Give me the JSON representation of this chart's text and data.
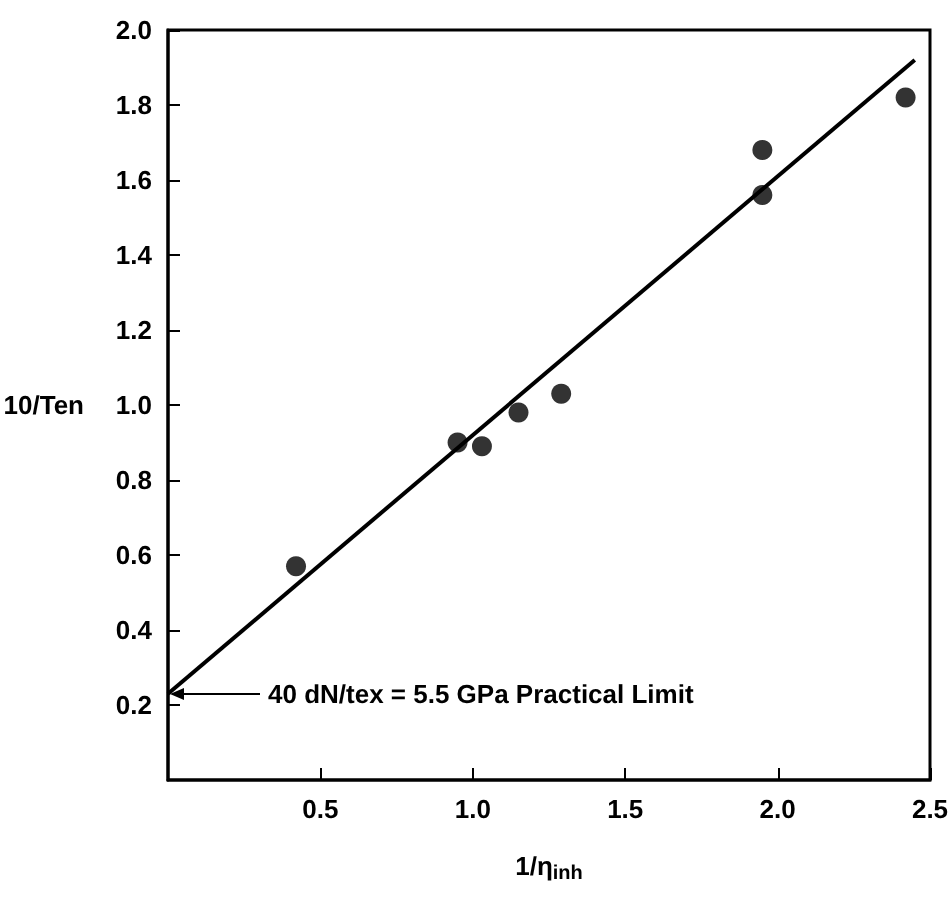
{
  "chart_data": {
    "type": "scatter",
    "xlabel": "1/η$_{inh}$",
    "ylabel": "10/Ten",
    "series": [
      {
        "color": "#000000",
        "marker": "circle",
        "x": [
          0.42,
          0.95,
          1.03,
          1.15,
          1.29,
          1.95,
          1.95,
          2.42
        ],
        "values": [
          0.57,
          0.9,
          0.89,
          0.98,
          1.03,
          1.68,
          1.56,
          1.82
        ]
      },
      {
        "type": "line",
        "color": "#000000",
        "marker": "none",
        "line_style": "solid",
        "x": [
          0,
          2.45
        ],
        "values": [
          0.23,
          1.92
        ]
      }
    ],
    "xlim": [
      0,
      2.5
    ],
    "xticks": [
      0.5,
      {
        "value": 1,
        "label": "1.0"
      },
      1.5,
      {
        "value": 2,
        "label": "2.0"
      },
      2.5
    ],
    "ylim": [
      0,
      2.0
    ],
    "yticks": [
      0.2,
      0.4,
      0.6,
      0.8,
      {
        "value": 1,
        "label": "1.0"
      },
      1.2,
      1.4,
      1.6,
      1.8,
      {
        "value": 2,
        "label": "2.0"
      }
    ],
    "annotations": [
      "40 dN/tex = 5.5 GPa Practical Limit"
    ],
    "grid": false
  }
}
